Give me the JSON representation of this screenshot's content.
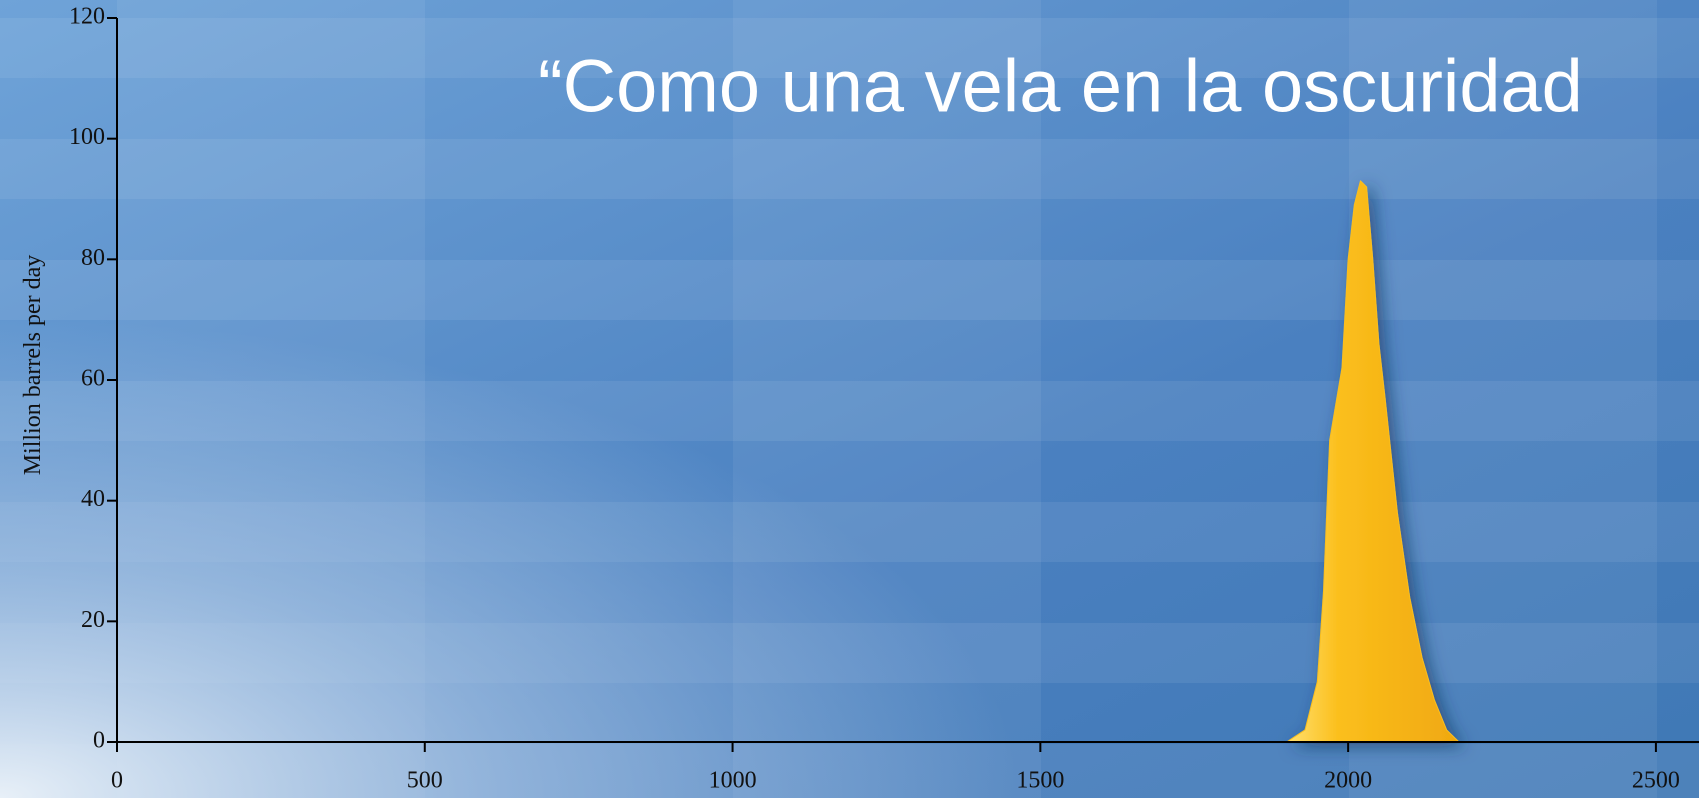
{
  "chart_data": {
    "type": "area",
    "title": "“Como una vela en la oscuridad",
    "y_label": "Million barrels per day",
    "x": [
      1900,
      1930,
      1950,
      1960,
      1970,
      1980,
      1990,
      2000,
      2010,
      2020,
      2030,
      2040,
      2050,
      2060,
      2080,
      2100,
      2120,
      2140,
      2160,
      2180
    ],
    "values": [
      0,
      2,
      10,
      25,
      50,
      56,
      62,
      80,
      89,
      93,
      92,
      80,
      66,
      57,
      38,
      24,
      14,
      7,
      2,
      0
    ],
    "color": "#fbbf1c",
    "xlim": [
      0,
      2570
    ],
    "xticks": [
      0,
      500,
      1000,
      1500,
      2000,
      2500
    ],
    "ylim": [
      0,
      120
    ],
    "yticks": [
      0,
      20,
      40,
      60,
      80,
      100,
      120
    ]
  }
}
